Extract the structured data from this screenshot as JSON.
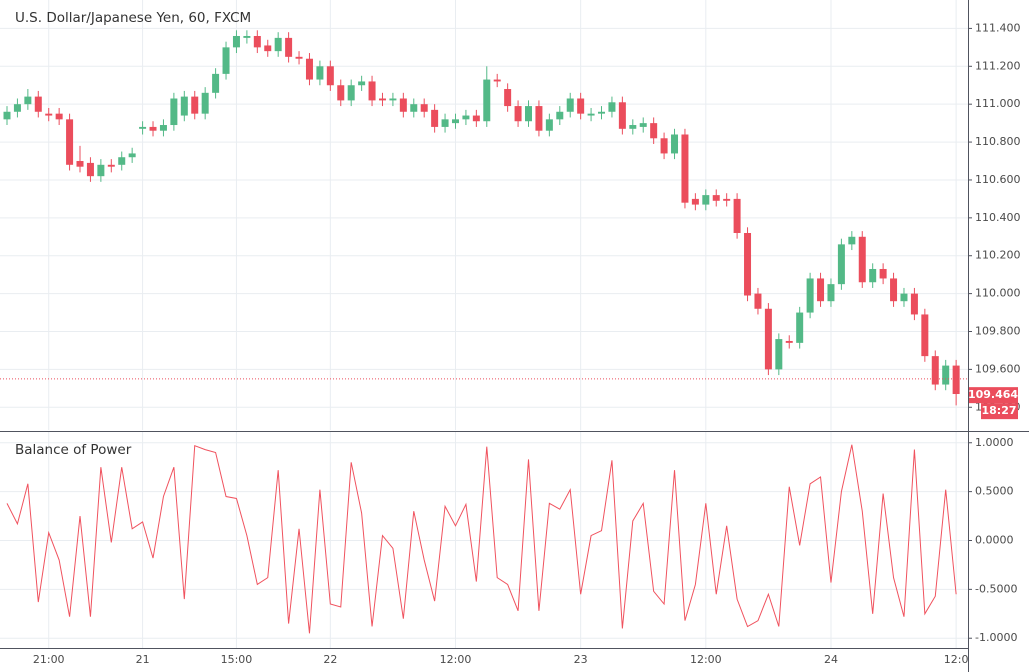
{
  "chart_data": [
    {
      "type": "candlestick",
      "title": "U.S. Dollar/Japanese Yen, 60, FXCM",
      "categories": [
        null,
        null,
        null,
        null,
        "21:00",
        null,
        null,
        null,
        null,
        null,
        null,
        null,
        null,
        "21",
        null,
        null,
        null,
        null,
        null,
        null,
        null,
        null,
        "15:00",
        null,
        null,
        null,
        null,
        null,
        null,
        null,
        null,
        "22",
        null,
        null,
        null,
        null,
        null,
        null,
        null,
        null,
        null,
        null,
        null,
        "12:00",
        null,
        null,
        null,
        null,
        null,
        null,
        null,
        null,
        null,
        null,
        null,
        "23",
        null,
        null,
        null,
        null,
        null,
        null,
        null,
        null,
        null,
        null,
        null,
        "12:00",
        null,
        null,
        null,
        null,
        null,
        null,
        null,
        null,
        null,
        null,
        null,
        "24",
        null,
        null,
        null,
        null,
        null,
        null,
        null,
        null,
        null,
        null,
        null,
        "12:0"
      ],
      "open": [
        110.92,
        110.96,
        111.0,
        111.04,
        110.95,
        110.95,
        110.92,
        110.7,
        110.69,
        110.62,
        110.68,
        110.68,
        110.72,
        110.87,
        110.88,
        110.86,
        110.89,
        110.94,
        111.04,
        110.95,
        111.06,
        111.16,
        111.3,
        111.35,
        111.36,
        111.31,
        111.28,
        111.35,
        111.25,
        111.24,
        111.13,
        111.2,
        111.1,
        111.02,
        111.1,
        111.12,
        111.03,
        111.02,
        111.03,
        110.96,
        111.0,
        110.97,
        110.88,
        110.9,
        110.92,
        110.94,
        110.91,
        111.13,
        111.08,
        110.99,
        110.91,
        110.99,
        110.86,
        110.92,
        110.96,
        111.03,
        110.94,
        110.95,
        110.96,
        111.01,
        110.87,
        110.88,
        110.9,
        110.82,
        110.74,
        110.84,
        110.5,
        110.47,
        110.52,
        110.5,
        110.5,
        110.32,
        110.0,
        109.92,
        109.6,
        109.75,
        109.74,
        109.9,
        110.08,
        109.96,
        110.05,
        110.26,
        110.3,
        110.06,
        110.13,
        110.08,
        109.96,
        110.0,
        109.89,
        109.67,
        109.52,
        109.62
      ],
      "high": [
        110.99,
        111.03,
        111.08,
        111.07,
        110.98,
        110.98,
        110.95,
        110.78,
        110.72,
        110.71,
        110.71,
        110.75,
        110.77,
        110.91,
        110.91,
        110.92,
        111.06,
        111.07,
        111.07,
        111.09,
        111.19,
        111.33,
        111.39,
        111.39,
        111.39,
        111.34,
        111.38,
        111.38,
        111.28,
        111.27,
        111.23,
        111.23,
        111.13,
        111.13,
        111.15,
        111.15,
        111.06,
        111.06,
        111.06,
        111.03,
        111.03,
        111.0,
        110.95,
        110.95,
        110.97,
        110.97,
        111.2,
        111.16,
        111.11,
        111.02,
        111.02,
        111.02,
        110.95,
        110.99,
        111.06,
        111.06,
        110.98,
        110.99,
        111.04,
        111.04,
        110.92,
        110.93,
        110.93,
        110.85,
        110.87,
        110.87,
        110.53,
        110.55,
        110.55,
        110.53,
        110.53,
        110.35,
        110.03,
        109.95,
        109.79,
        109.78,
        109.93,
        110.11,
        110.11,
        110.08,
        110.29,
        110.33,
        110.33,
        110.16,
        110.16,
        110.11,
        110.03,
        110.03,
        109.92,
        109.7,
        109.65,
        109.65
      ],
      "low": [
        110.89,
        110.93,
        110.97,
        110.93,
        110.91,
        110.89,
        110.65,
        110.64,
        110.59,
        110.59,
        110.64,
        110.65,
        110.69,
        110.84,
        110.83,
        110.83,
        110.86,
        110.91,
        110.92,
        110.92,
        111.03,
        111.13,
        111.27,
        111.32,
        111.27,
        111.25,
        111.25,
        111.22,
        111.21,
        111.1,
        111.1,
        111.07,
        110.99,
        110.99,
        111.07,
        110.99,
        110.99,
        110.99,
        110.93,
        110.93,
        110.93,
        110.85,
        110.85,
        110.87,
        110.89,
        110.88,
        110.88,
        111.09,
        110.96,
        110.88,
        110.88,
        110.83,
        110.83,
        110.89,
        110.93,
        110.92,
        110.91,
        110.92,
        110.93,
        110.84,
        110.84,
        110.85,
        110.79,
        110.71,
        110.71,
        110.45,
        110.44,
        110.44,
        110.46,
        110.46,
        110.29,
        109.96,
        109.89,
        109.57,
        109.57,
        109.71,
        109.71,
        109.87,
        109.93,
        109.93,
        110.02,
        110.23,
        110.03,
        110.03,
        110.05,
        109.93,
        109.93,
        109.86,
        109.64,
        109.49,
        109.49,
        109.41
      ],
      "close": [
        110.96,
        111.0,
        111.04,
        110.96,
        110.94,
        110.92,
        110.68,
        110.67,
        110.62,
        110.68,
        110.67,
        110.72,
        110.74,
        110.88,
        110.86,
        110.89,
        111.03,
        111.04,
        110.95,
        111.06,
        111.16,
        111.3,
        111.36,
        111.36,
        111.3,
        111.28,
        111.35,
        111.25,
        111.24,
        111.13,
        111.2,
        111.1,
        111.02,
        111.1,
        111.12,
        111.02,
        111.02,
        111.03,
        110.96,
        111.0,
        110.96,
        110.88,
        110.92,
        110.92,
        110.94,
        110.91,
        111.13,
        111.12,
        110.99,
        110.91,
        110.99,
        110.86,
        110.92,
        110.96,
        111.03,
        110.95,
        110.95,
        110.96,
        111.01,
        110.87,
        110.89,
        110.9,
        110.82,
        110.74,
        110.84,
        110.48,
        110.47,
        110.52,
        110.49,
        110.49,
        110.32,
        109.99,
        109.92,
        109.6,
        109.76,
        109.74,
        109.9,
        110.08,
        109.96,
        110.05,
        110.26,
        110.3,
        110.06,
        110.13,
        110.08,
        109.96,
        110.0,
        109.89,
        109.67,
        109.52,
        109.62,
        109.47
      ],
      "up_color": "#53b987",
      "down_color": "#eb4d5c",
      "ylim": [
        109.28,
        111.55
      ],
      "yticks": [
        {
          "value": 109.4,
          "label": "109.400"
        },
        {
          "value": 109.6,
          "label": "109.600"
        },
        {
          "value": 109.8,
          "label": "109.800"
        },
        {
          "value": 110.0,
          "label": "110.000"
        },
        {
          "value": 110.2,
          "label": "110.200"
        },
        {
          "value": 110.4,
          "label": "110.400"
        },
        {
          "value": 110.6,
          "label": "110.600"
        },
        {
          "value": 110.8,
          "label": "110.800"
        },
        {
          "value": 111.0,
          "label": "111.000"
        },
        {
          "value": 111.2,
          "label": "111.200"
        },
        {
          "value": 111.4,
          "label": "111.400"
        }
      ],
      "grid": true,
      "reference_line": 109.55,
      "last_price": 109.464,
      "last_price_color": "#eb4d5c",
      "countdown": "18:27"
    },
    {
      "type": "line",
      "title": "Balance of Power",
      "values": [
        0.38,
        0.17,
        0.58,
        -0.63,
        0.08,
        -0.2,
        -0.78,
        0.25,
        -0.78,
        0.75,
        -0.02,
        0.75,
        0.12,
        0.19,
        -0.18,
        0.45,
        0.75,
        -0.6,
        0.97,
        0.93,
        0.9,
        0.45,
        0.43,
        0.05,
        -0.45,
        -0.38,
        0.72,
        -0.85,
        0.12,
        -0.95,
        0.52,
        -0.65,
        -0.68,
        0.8,
        0.28,
        -0.88,
        0.05,
        -0.08,
        -0.8,
        0.3,
        -0.2,
        -0.62,
        0.35,
        0.15,
        0.37,
        -0.42,
        0.96,
        -0.38,
        -0.45,
        -0.72,
        0.83,
        -0.72,
        0.38,
        0.32,
        0.52,
        -0.55,
        0.05,
        0.1,
        0.82,
        -0.9,
        0.2,
        0.38,
        -0.52,
        -0.65,
        0.72,
        -0.82,
        -0.45,
        0.38,
        -0.55,
        0.15,
        -0.6,
        -0.88,
        -0.82,
        -0.55,
        -0.88,
        0.55,
        -0.05,
        0.58,
        0.65,
        -0.43,
        0.5,
        0.98,
        0.3,
        -0.75,
        0.48,
        -0.38,
        -0.78,
        0.93,
        -0.75,
        -0.57,
        0.52,
        -0.55
      ],
      "color": "#f0525e",
      "ylim": [
        -1.1,
        1.11
      ],
      "yticks": [
        {
          "value": -1,
          "label": "-1.0000"
        },
        {
          "value": -0.5,
          "label": "-0.5000"
        },
        {
          "value": 0,
          "label": "0.0000"
        },
        {
          "value": 0.5,
          "label": "0.5000"
        },
        {
          "value": 1,
          "label": "1.0000"
        }
      ],
      "grid": true
    }
  ]
}
